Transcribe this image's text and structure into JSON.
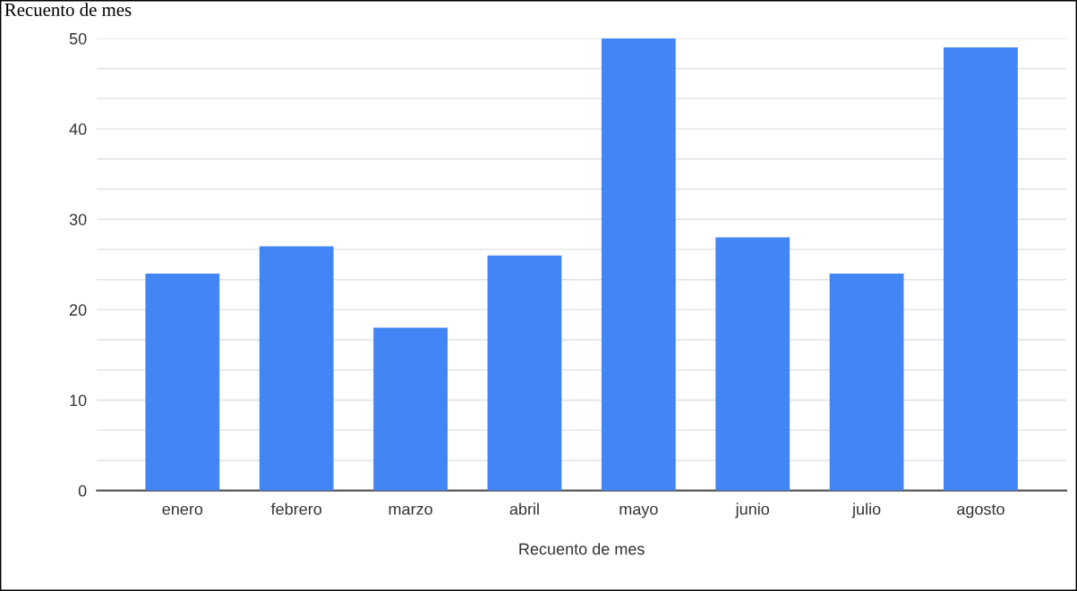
{
  "chart_data": {
    "type": "bar",
    "title": "Recuento de mes",
    "xlabel": "Recuento de mes",
    "categories": [
      "enero",
      "febrero",
      "marzo",
      "abril",
      "mayo",
      "junio",
      "julio",
      "agosto"
    ],
    "values": [
      24,
      27,
      18,
      26,
      50,
      28,
      24,
      49
    ],
    "color": "#4285f4",
    "ylim": [
      0,
      50
    ],
    "yticks": [
      0,
      {
        "value": 3.33,
        "label": null
      },
      {
        "value": 6.67,
        "label": null
      },
      10,
      {
        "value": 13.33,
        "label": null
      },
      {
        "value": 16.67,
        "label": null
      },
      20,
      {
        "value": 23.33,
        "label": null
      },
      {
        "value": 26.67,
        "label": null
      },
      30,
      {
        "value": 33.33,
        "label": null
      },
      {
        "value": 36.67,
        "label": null
      },
      40,
      {
        "value": 43.33,
        "label": null
      },
      {
        "value": 46.67,
        "label": null
      },
      50
    ],
    "grid": "y"
  }
}
